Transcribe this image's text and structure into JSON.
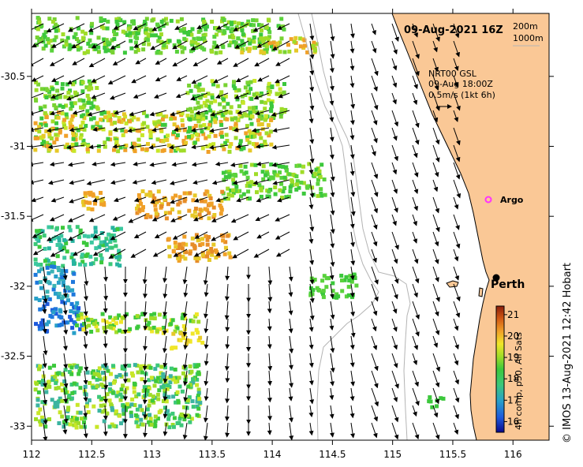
{
  "map": {
    "date_title": "09-Aug-2021 16Z",
    "contours": [
      "200m",
      "1000m"
    ],
    "current_source": {
      "line1": "NRT00 GSL",
      "line2": "09-Aug 18:00Z",
      "line3": "0.5m/s (1kt 6h)"
    },
    "places": [
      {
        "name": "Argo",
        "lon": 115.88,
        "lat": -31.45,
        "marker": "argo-float-icon",
        "color": "#ff33ff"
      },
      {
        "name": "Perth",
        "lon": 115.86,
        "lat": -31.95,
        "marker": "city-dot-icon",
        "color": "#000000"
      }
    ],
    "x_ticks": [
      "112",
      "112.5",
      "113",
      "113.5",
      "114",
      "114.5",
      "115",
      "115.5",
      "116"
    ],
    "y_ticks": [
      "-30.5",
      "-31",
      "-31.5",
      "-32",
      "-32.5",
      "-33"
    ],
    "lon_range": [
      112,
      116.3
    ],
    "lat_range": [
      -33.1,
      -30.05
    ]
  },
  "colorbar": {
    "ticks": [
      "16",
      "17",
      "18",
      "19",
      "20",
      "21"
    ],
    "range": [
      15.5,
      21.4
    ],
    "label": "4h comp, p50, All Sats"
  },
  "credit": "© IMOS 13-Aug-2021 12:42 Hobart",
  "colors": {
    "land": "#fac896",
    "isobath": "#b4b4b4",
    "argo": "#ff33ff"
  }
}
